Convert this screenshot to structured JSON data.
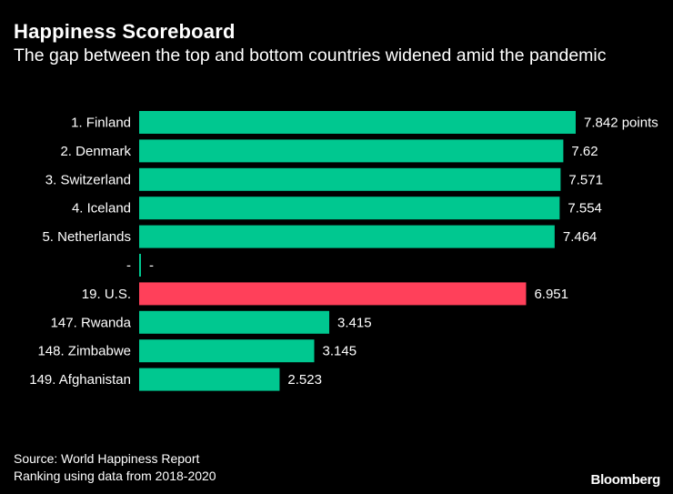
{
  "chart_data": {
    "type": "bar",
    "orientation": "horizontal",
    "title": "Happiness Scoreboard",
    "subtitle": "The gap between the top and bottom countries widened amid the pandemic",
    "categories": [
      "1. Finland",
      "2. Denmark",
      "3. Switzerland",
      "4. Iceland",
      "5. Netherlands",
      "-",
      "19. U.S.",
      "147. Rwanda",
      "148. Zimbabwe",
      "149. Afghanistan"
    ],
    "values": [
      7.842,
      7.62,
      7.571,
      7.554,
      7.464,
      null,
      6.951,
      3.415,
      3.145,
      2.523
    ],
    "value_labels": [
      "7.842 points",
      "7.62",
      "7.571",
      "7.554",
      "7.464",
      "-",
      "6.951",
      "3.415",
      "3.145",
      "2.523"
    ],
    "bar_colors": [
      "#00c890",
      "#00c890",
      "#00c890",
      "#00c890",
      "#00c890",
      "#00c890",
      "#ff405a",
      "#00c890",
      "#00c890",
      "#00c890"
    ],
    "xlim": [
      0,
      7.842
    ],
    "xlabel": "",
    "ylabel": "",
    "grid": false,
    "legend": "none"
  },
  "footer": {
    "source": "Source: World Happiness Report",
    "note": "Ranking using data from 2018-2020",
    "brand": "Bloomberg"
  }
}
